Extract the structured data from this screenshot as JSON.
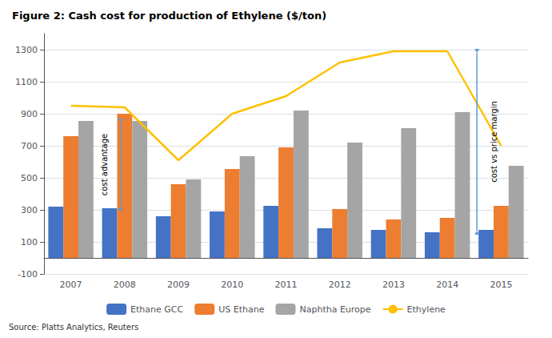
{
  "chart_data": {
    "type": "bar",
    "title": "Figure 2: Cash cost for production of Ethylene ($/ton)",
    "source": "Source: Platts Analytics, Reuters",
    "categories": [
      "2007",
      "2008",
      "2009",
      "2010",
      "2011",
      "2012",
      "2013",
      "2014",
      "2015"
    ],
    "series": [
      {
        "name": "Ethane GCC",
        "type": "bar",
        "color": "#4472C4",
        "values": [
          320,
          310,
          260,
          290,
          325,
          185,
          175,
          160,
          175
        ]
      },
      {
        "name": "US Ethane",
        "type": "bar",
        "color": "#ED7D31",
        "values": [
          760,
          900,
          460,
          555,
          690,
          305,
          240,
          250,
          325
        ]
      },
      {
        "name": "Naphtha Europe",
        "type": "bar",
        "color": "#A5A5A5",
        "values": [
          855,
          855,
          490,
          635,
          920,
          720,
          810,
          910,
          575
        ]
      },
      {
        "name": "Ethylene",
        "type": "line",
        "color": "#FFC000",
        "values": [
          950,
          940,
          610,
          900,
          1010,
          1220,
          1290,
          1290,
          700
        ]
      }
    ],
    "annotations": [
      {
        "text": "cost advantage",
        "category": "2008",
        "from": "Ethane GCC",
        "to": "Naphtha Europe",
        "color": "#5B9BD5"
      },
      {
        "text": "cost vs price margin",
        "category": "2014",
        "from": "Ethane GCC",
        "to": "Ethylene",
        "color": "#5B9BD5"
      }
    ],
    "ylim": [
      -100,
      1400
    ],
    "yticks": [
      -100,
      100,
      300,
      500,
      700,
      900,
      1100,
      1300
    ],
    "grid": true,
    "legend": "bottom"
  }
}
